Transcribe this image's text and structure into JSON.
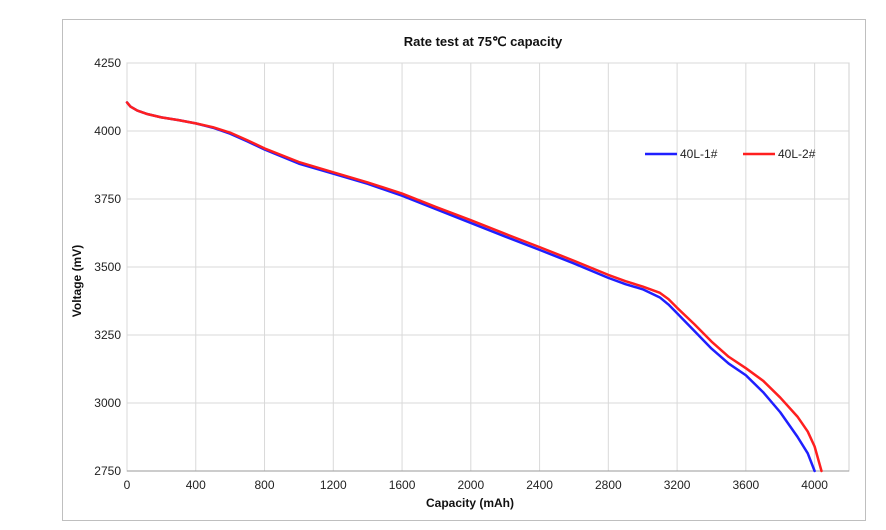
{
  "chart_data": {
    "type": "line",
    "title": "Rate test at 75℃ capacity",
    "xlabel": "Capacity (mAh)",
    "ylabel": "Voltage (mV)",
    "xlim": [
      0,
      4200
    ],
    "ylim": [
      2750,
      4250
    ],
    "xticks": [
      0,
      400,
      800,
      1200,
      1600,
      2000,
      2400,
      2800,
      3200,
      3600,
      4000
    ],
    "yticks": [
      2750,
      3000,
      3250,
      3500,
      3750,
      4000,
      4250
    ],
    "grid": true,
    "legend_position": "top-right",
    "series": [
      {
        "name": "40L-1#",
        "color": "#1f1fff",
        "x": [
          0,
          20,
          60,
          120,
          200,
          300,
          400,
          500,
          600,
          700,
          800,
          1000,
          1200,
          1400,
          1600,
          1800,
          2000,
          2200,
          2400,
          2600,
          2800,
          2900,
          3000,
          3100,
          3150,
          3200,
          3300,
          3400,
          3500,
          3600,
          3700,
          3800,
          3900,
          3960,
          4000
        ],
        "y": [
          4105,
          4090,
          4075,
          4062,
          4050,
          4040,
          4028,
          4012,
          3990,
          3962,
          3932,
          3880,
          3843,
          3806,
          3762,
          3712,
          3662,
          3612,
          3563,
          3513,
          3460,
          3437,
          3418,
          3388,
          3362,
          3330,
          3265,
          3200,
          3145,
          3102,
          3040,
          2966,
          2876,
          2815,
          2750
        ]
      },
      {
        "name": "40L-2#",
        "color": "#ff1f1f",
        "x": [
          0,
          20,
          60,
          120,
          200,
          300,
          400,
          500,
          600,
          700,
          800,
          1000,
          1200,
          1400,
          1600,
          1800,
          2000,
          2200,
          2400,
          2600,
          2800,
          2900,
          3000,
          3100,
          3150,
          3200,
          3300,
          3400,
          3500,
          3600,
          3700,
          3800,
          3900,
          3960,
          4000,
          4040
        ],
        "y": [
          4105,
          4090,
          4075,
          4062,
          4050,
          4040,
          4028,
          4014,
          3994,
          3966,
          3936,
          3886,
          3848,
          3811,
          3770,
          3720,
          3672,
          3622,
          3573,
          3523,
          3471,
          3448,
          3428,
          3405,
          3382,
          3350,
          3290,
          3226,
          3170,
          3128,
          3082,
          3020,
          2950,
          2895,
          2840,
          2750
        ]
      }
    ]
  }
}
